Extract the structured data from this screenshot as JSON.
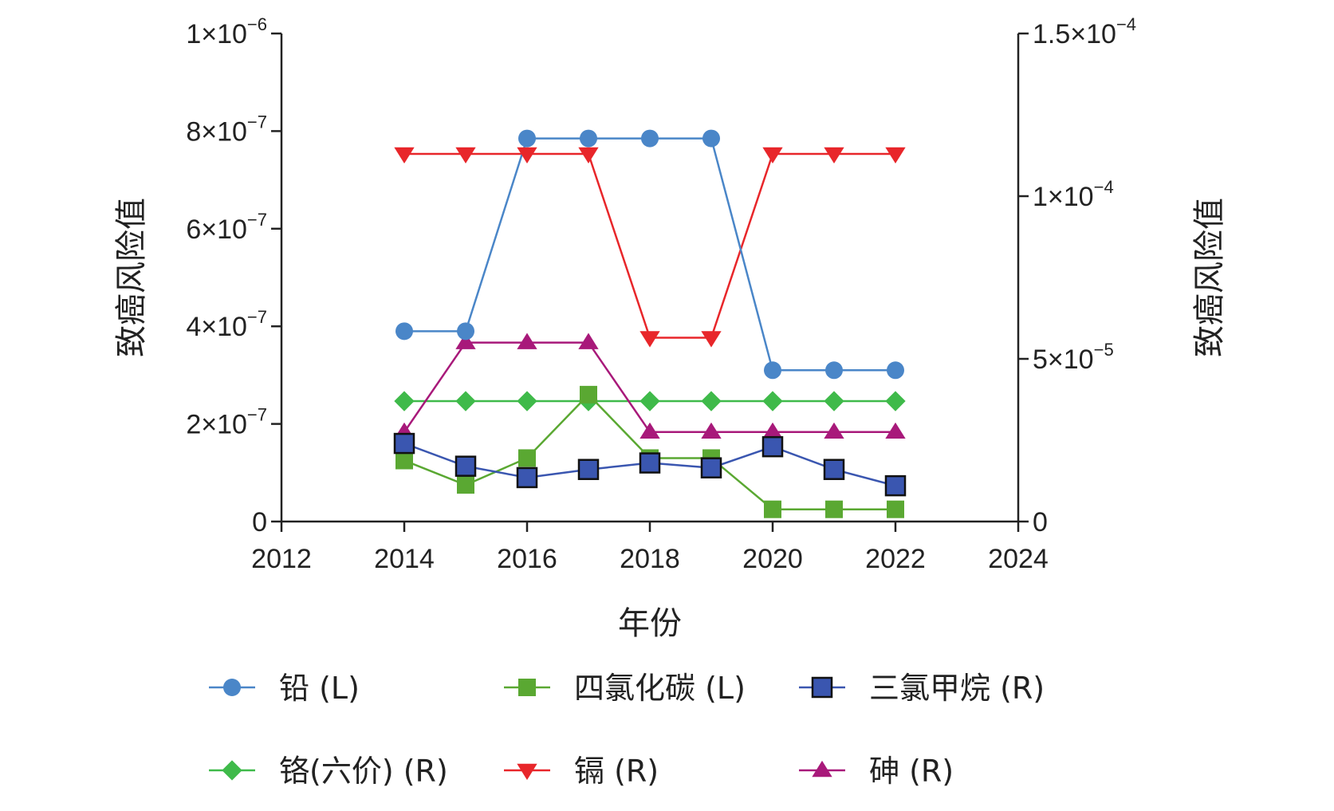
{
  "chart_data": {
    "type": "line",
    "xlabel": "年份",
    "ylabel_left": "致癌风险值",
    "ylabel_right": "致癌风险值",
    "xlim": [
      2012,
      2024
    ],
    "x_ticks": [
      "2012",
      "2014",
      "2016",
      "2018",
      "2020",
      "2022",
      "2024"
    ],
    "ylim_left": [
      0,
      1e-06
    ],
    "ylim_right": [
      0,
      0.00015
    ],
    "y_ticks_left": [
      {
        "base": "0",
        "exp": ""
      },
      {
        "base": "2×10",
        "exp": "−7"
      },
      {
        "base": "4×10",
        "exp": "−7"
      },
      {
        "base": "6×10",
        "exp": "−7"
      },
      {
        "base": "8×10",
        "exp": "−7"
      },
      {
        "base": "1×10",
        "exp": "−6"
      }
    ],
    "y_ticks_left_values": [
      0,
      2e-07,
      4e-07,
      6e-07,
      8e-07,
      1e-06
    ],
    "y_ticks_right": [
      {
        "base": "0",
        "exp": ""
      },
      {
        "base": "5×10",
        "exp": "−5"
      },
      {
        "base": "1×10",
        "exp": "−4"
      },
      {
        "base": "1.5×10",
        "exp": "−4"
      }
    ],
    "y_ticks_right_values": [
      0,
      5e-05,
      0.0001,
      0.00015
    ],
    "x": [
      2014,
      2015,
      2016,
      2017,
      2018,
      2019,
      2020,
      2021,
      2022
    ],
    "series": [
      {
        "name": "铅 (L)",
        "axis": "left",
        "color": "#4a86c8",
        "marker": "circle",
        "values": [
          3.9e-07,
          3.9e-07,
          7.85e-07,
          7.85e-07,
          7.85e-07,
          7.85e-07,
          3.1e-07,
          3.1e-07,
          3.1e-07
        ]
      },
      {
        "name": "四氯化碳 (L)",
        "axis": "left",
        "color": "#5aa832",
        "marker": "square",
        "values": [
          1.25e-07,
          7.5e-08,
          1.3e-07,
          2.6e-07,
          1.3e-07,
          1.3e-07,
          2.5e-08,
          2.5e-08,
          2.5e-08
        ]
      },
      {
        "name": "三氯甲烷 (R)",
        "axis": "right",
        "color": "#3a56b0",
        "marker": "square-outlined",
        "values": [
          2.4e-05,
          1.7e-05,
          1.35e-05,
          1.6e-05,
          1.8e-05,
          1.65e-05,
          2.3e-05,
          1.6e-05,
          1.1e-05
        ]
      },
      {
        "name": "铬(六价) (R)",
        "axis": "right",
        "color": "#3fba4a",
        "marker": "diamond",
        "values": [
          3.7e-05,
          3.7e-05,
          3.7e-05,
          3.7e-05,
          3.7e-05,
          3.7e-05,
          3.7e-05,
          3.7e-05,
          3.7e-05
        ]
      },
      {
        "name": "镉 (R)",
        "axis": "right",
        "color": "#e8262a",
        "marker": "triangle-down",
        "values": [
          0.000113,
          0.000113,
          0.000113,
          0.000113,
          5.65e-05,
          5.65e-05,
          0.000113,
          0.000113,
          0.000113
        ]
      },
      {
        "name": "砷 (R)",
        "axis": "right",
        "color": "#a8197a",
        "marker": "triangle-up",
        "values": [
          2.75e-05,
          5.5e-05,
          5.5e-05,
          5.5e-05,
          2.75e-05,
          2.75e-05,
          2.75e-05,
          2.75e-05,
          2.75e-05
        ]
      }
    ],
    "legend": {
      "placement": "bottom",
      "columns": 3
    },
    "grid": false
  }
}
